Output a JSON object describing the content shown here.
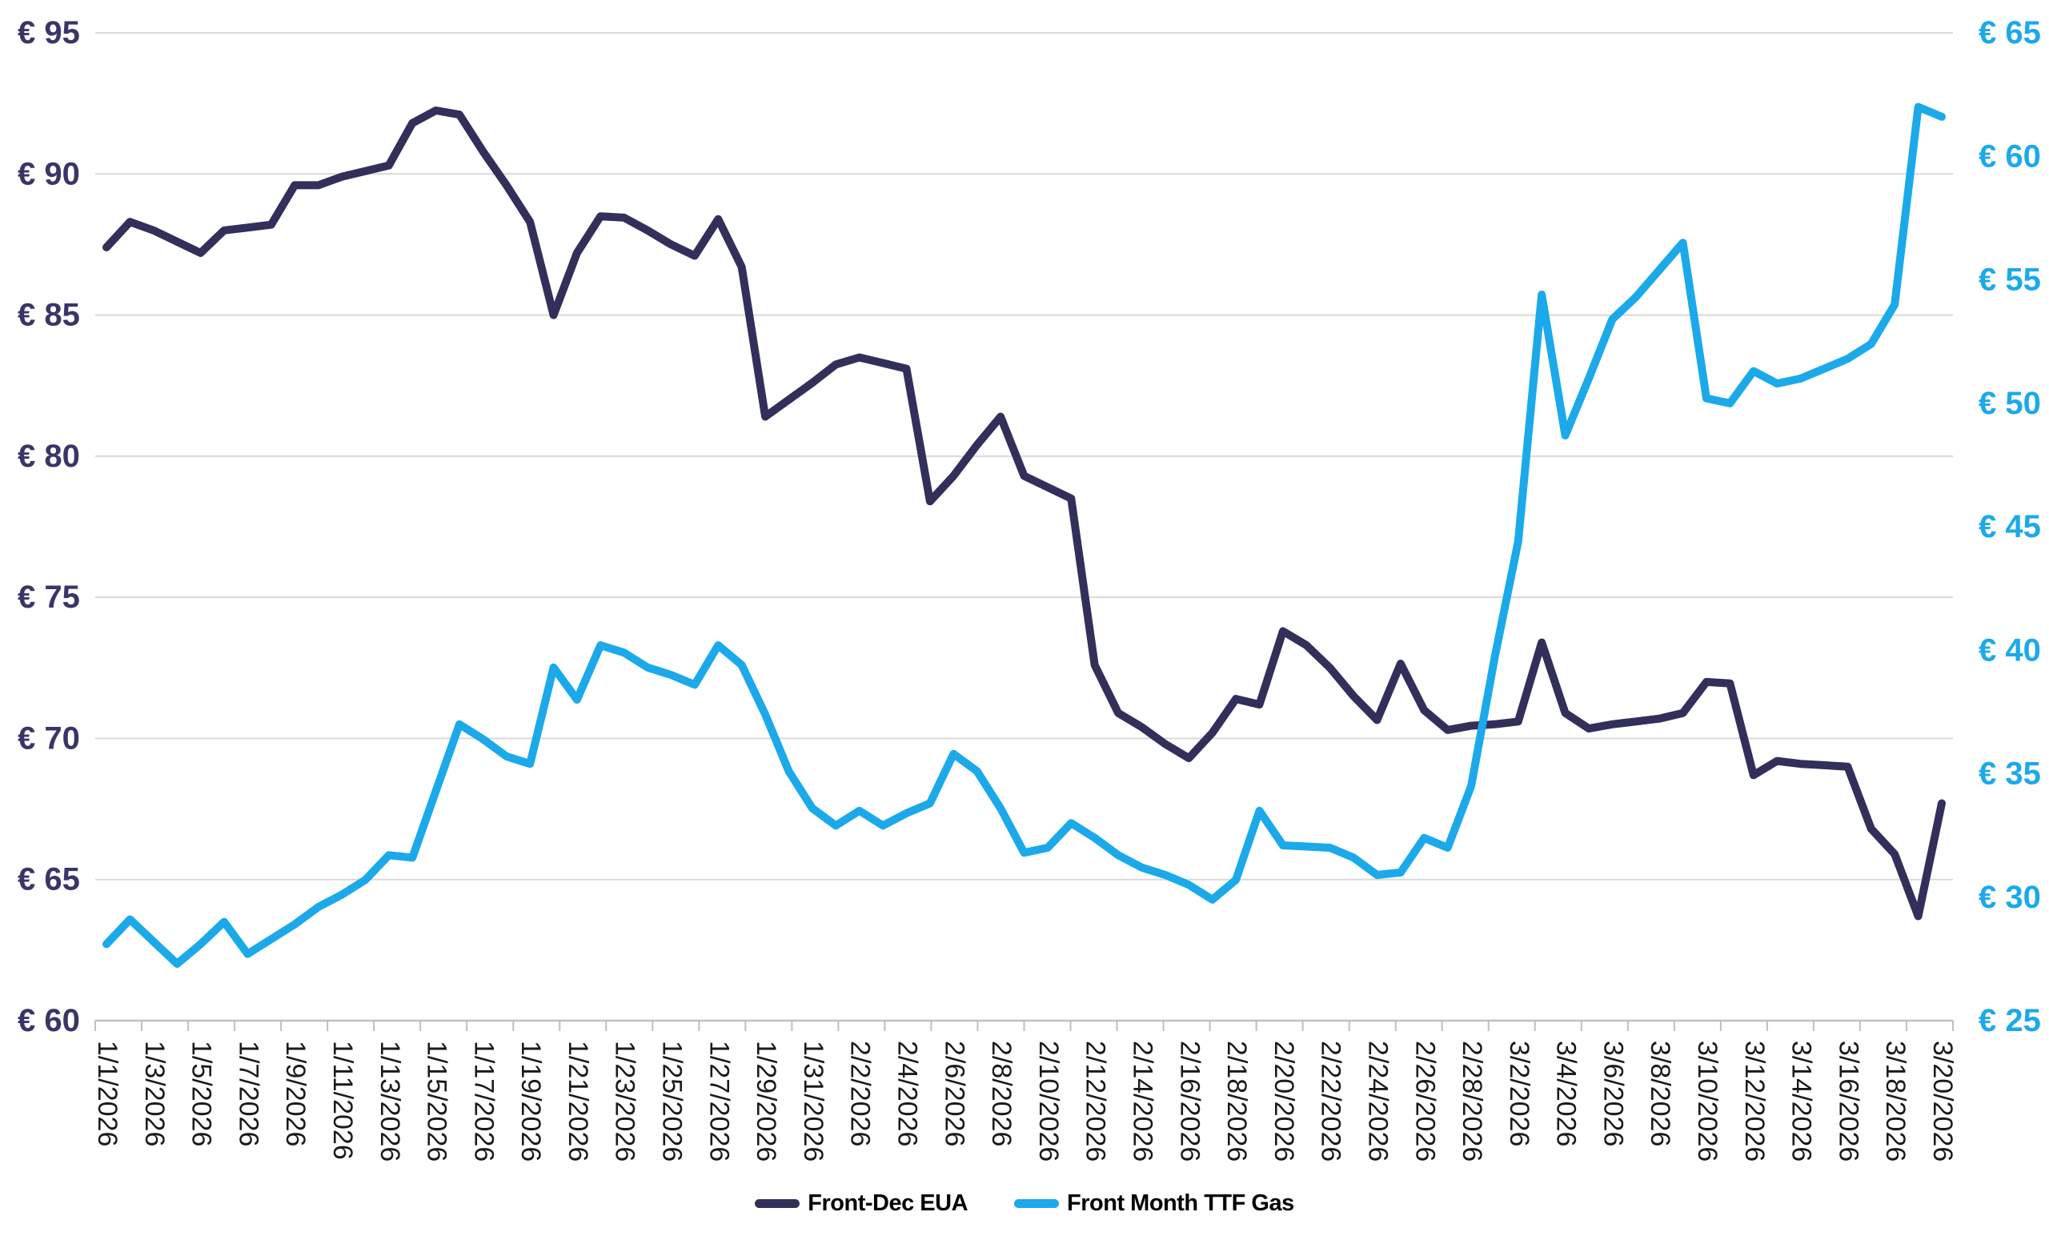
{
  "legend": {
    "items": [
      {
        "label": "Front-Dec EUA",
        "color": "#332F5B"
      },
      {
        "label": "Front Month TTF Gas",
        "color": "#1BA9EA"
      }
    ]
  },
  "chart_data": {
    "type": "line",
    "title": "",
    "xlabel": "",
    "ylabel_left": "",
    "ylabel_right": "",
    "grid": true,
    "legend_position": "bottom",
    "x": [
      "1/1/2026",
      "1/2/2026",
      "1/3/2026",
      "1/4/2026",
      "1/5/2026",
      "1/6/2026",
      "1/7/2026",
      "1/8/2026",
      "1/9/2026",
      "1/10/2026",
      "1/11/2026",
      "1/12/2026",
      "1/13/2026",
      "1/14/2026",
      "1/15/2026",
      "1/16/2026",
      "1/17/2026",
      "1/18/2026",
      "1/19/2026",
      "1/20/2026",
      "1/21/2026",
      "1/22/2026",
      "1/23/2026",
      "1/24/2026",
      "1/25/2026",
      "1/26/2026",
      "1/27/2026",
      "1/28/2026",
      "1/29/2026",
      "1/30/2026",
      "1/31/2026",
      "2/1/2026",
      "2/2/2026",
      "2/3/2026",
      "2/4/2026",
      "2/5/2026",
      "2/6/2026",
      "2/7/2026",
      "2/8/2026",
      "2/9/2026",
      "2/10/2026",
      "2/11/2026",
      "2/12/2026",
      "2/13/2026",
      "2/14/2026",
      "2/15/2026",
      "2/16/2026",
      "2/17/2026",
      "2/18/2026",
      "2/19/2026",
      "2/20/2026",
      "2/21/2026",
      "2/22/2026",
      "2/23/2026",
      "2/24/2026",
      "2/25/2026",
      "2/26/2026",
      "2/27/2026",
      "2/28/2026",
      "3/1/2026",
      "3/2/2026",
      "3/3/2026",
      "3/4/2026",
      "3/5/2026",
      "3/6/2026",
      "3/7/2026",
      "3/8/2026",
      "3/9/2026",
      "3/10/2026",
      "3/11/2026",
      "3/12/2026",
      "3/13/2026",
      "3/14/2026",
      "3/15/2026",
      "3/16/2026",
      "3/17/2026",
      "3/18/2026",
      "3/19/2026",
      "3/20/2026"
    ],
    "x_tick_labels": [
      "1/1/2026",
      "1/3/2026",
      "1/5/2026",
      "1/7/2026",
      "1/9/2026",
      "1/11/2026",
      "1/13/2026",
      "1/15/2026",
      "1/17/2026",
      "1/19/2026",
      "1/21/2026",
      "1/23/2026",
      "1/25/2026",
      "1/27/2026",
      "1/29/2026",
      "1/31/2026",
      "2/2/2026",
      "2/4/2026",
      "2/6/2026",
      "2/8/2026",
      "2/10/2026",
      "2/12/2026",
      "2/14/2026",
      "2/16/2026",
      "2/18/2026",
      "2/20/2026",
      "2/22/2026",
      "2/24/2026",
      "2/26/2026",
      "2/28/2026",
      "3/2/2026",
      "3/4/2026",
      "3/6/2026",
      "3/8/2026",
      "3/10/2026",
      "3/12/2026",
      "3/14/2026",
      "3/16/2026",
      "3/18/2026",
      "3/20/2026"
    ],
    "series": [
      {
        "name": "Front-Dec EUA",
        "axis": "left",
        "color": "#332F5B",
        "values": [
          87.4,
          88.3,
          88.0,
          87.6,
          87.2,
          88.0,
          88.1,
          88.2,
          89.6,
          89.6,
          89.9,
          90.1,
          90.3,
          91.8,
          92.25,
          92.1,
          90.8,
          89.6,
          88.3,
          85.0,
          87.2,
          88.5,
          88.45,
          88.0,
          87.5,
          87.1,
          88.4,
          86.7,
          81.4,
          82.0,
          82.6,
          83.25,
          83.5,
          83.3,
          83.1,
          78.4,
          79.3,
          80.4,
          81.4,
          79.3,
          78.9,
          78.5,
          72.6,
          70.9,
          70.4,
          69.8,
          69.3,
          70.2,
          71.4,
          71.2,
          73.8,
          73.3,
          72.5,
          71.5,
          70.65,
          72.65,
          71.0,
          70.3,
          70.45,
          70.5,
          70.6,
          73.4,
          70.9,
          70.35,
          70.5,
          70.6,
          70.7,
          70.9,
          72.0,
          71.95,
          68.7,
          69.2,
          69.1,
          69.05,
          69.0,
          66.8,
          65.9,
          63.7,
          67.7
        ]
      },
      {
        "name": "Front Month TTF Gas",
        "axis": "right",
        "color": "#1BA9EA",
        "values": [
          28.1,
          29.1,
          28.2,
          27.3,
          28.1,
          29.0,
          27.7,
          28.3,
          28.9,
          29.6,
          30.1,
          30.7,
          31.7,
          31.6,
          34.3,
          37.0,
          36.4,
          35.7,
          35.4,
          39.3,
          38.0,
          40.2,
          39.9,
          39.3,
          39.0,
          38.6,
          40.2,
          39.4,
          37.4,
          35.1,
          33.6,
          32.9,
          33.5,
          32.9,
          33.4,
          33.8,
          35.8,
          35.1,
          33.6,
          31.8,
          32.0,
          33.0,
          32.4,
          31.7,
          31.2,
          30.9,
          30.5,
          29.9,
          30.7,
          33.5,
          32.1,
          32.05,
          32.0,
          31.6,
          30.9,
          31.0,
          32.4,
          32.0,
          34.5,
          39.7,
          44.4,
          54.4,
          48.7,
          51.0,
          53.4,
          54.3,
          55.4,
          56.5,
          50.2,
          50.0,
          51.3,
          50.8,
          51.0,
          51.4,
          51.8,
          52.4,
          54.0,
          62.0,
          61.6
        ]
      }
    ],
    "left_axis": {
      "min": 60,
      "max": 95,
      "step": 5,
      "tick_labels": [
        "€ 95",
        "€ 90",
        "€ 85",
        "€ 80",
        "€ 75",
        "€ 70",
        "€ 65",
        "€ 60"
      ],
      "color": "#3A3568"
    },
    "right_axis": {
      "min": 25,
      "max": 65,
      "step": 5,
      "tick_labels": [
        "€ 65",
        "€ 60",
        "€ 55",
        "€ 50",
        "€ 45",
        "€ 40",
        "€ 35",
        "€ 30",
        "€ 25"
      ],
      "color": "#1BA9EA"
    },
    "x_axis": {
      "color": "#1A1A1A"
    },
    "grid_color": "#D9D9D9",
    "axis_line_color": "#BFBFBF"
  }
}
